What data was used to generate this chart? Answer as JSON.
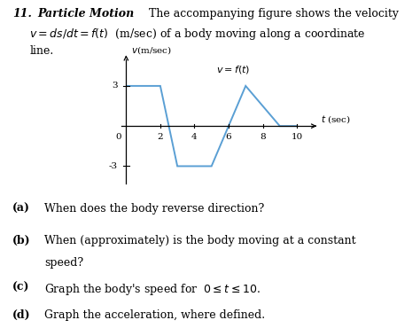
{
  "graph_t": [
    0,
    2,
    3,
    5,
    7,
    9,
    10
  ],
  "graph_v": [
    3,
    3,
    -3,
    -3,
    3,
    0,
    0
  ],
  "line_color": "#5a9fd4",
  "xticks": [
    2,
    4,
    6,
    8,
    10
  ],
  "ytick_pos": [
    3,
    -3
  ],
  "ytick_labels": [
    "3",
    "-3"
  ],
  "xlim": [
    -0.5,
    11.8
  ],
  "ylim": [
    -4.8,
    5.5
  ],
  "fig_width": 4.74,
  "fig_height": 3.7,
  "dpi": 100
}
